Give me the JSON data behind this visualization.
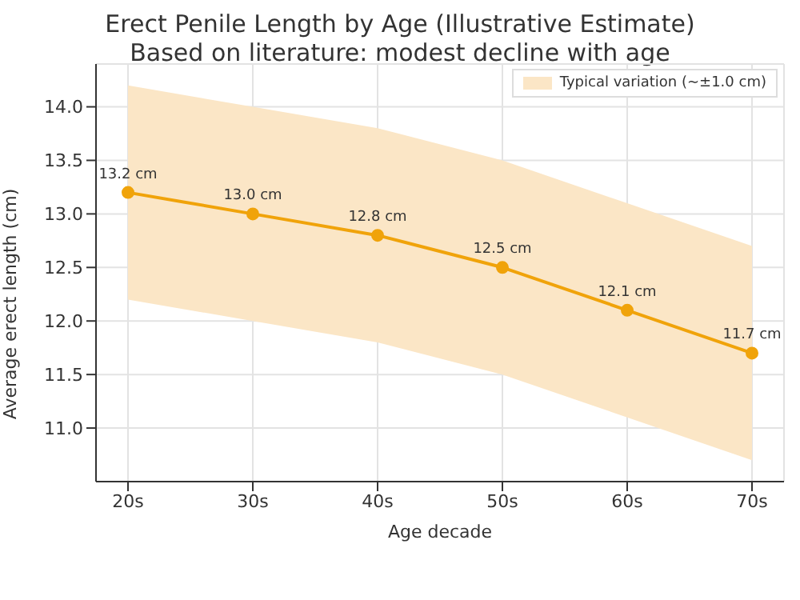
{
  "chart_data": {
    "type": "line",
    "title": "Erect Penile Length by Age (Illustrative Estimate)",
    "subtitle": "Based on literature: modest decline with age",
    "xlabel": "Age decade",
    "ylabel": "Average erect length (cm)",
    "categories": [
      "20s",
      "30s",
      "40s",
      "50s",
      "60s",
      "70s"
    ],
    "series": [
      {
        "type": "area",
        "name": "Typical variation (~±1.0 cm)",
        "color": "#fbe6c6",
        "values": [
          null,
          null,
          null,
          null,
          null,
          null
        ],
        "lower": [
          12.2,
          12.0,
          11.8,
          11.5,
          11.1,
          10.7
        ],
        "upper": [
          14.2,
          14.0,
          13.8,
          13.5,
          13.1,
          12.7
        ]
      },
      {
        "color": "#f0a30a",
        "values": [
          13.2,
          13.0,
          12.8,
          12.5,
          12.1,
          11.7
        ],
        "value_labels": [
          "13.2 cm",
          "13.0 cm",
          "12.8 cm",
          "12.5 cm",
          "12.1 cm",
          "11.7 cm"
        ]
      }
    ],
    "ylim": [
      10.5,
      14.4
    ],
    "yticks": [
      {
        "value": 11,
        "label": "11.0"
      },
      11.5,
      {
        "value": 12,
        "label": "12.0"
      },
      12.5,
      {
        "value": 13,
        "label": "13.0"
      },
      13.5,
      {
        "value": 14,
        "label": "14.0"
      }
    ],
    "grid": true,
    "legend": "top right",
    "marker": "circle",
    "line_style": "solid"
  }
}
